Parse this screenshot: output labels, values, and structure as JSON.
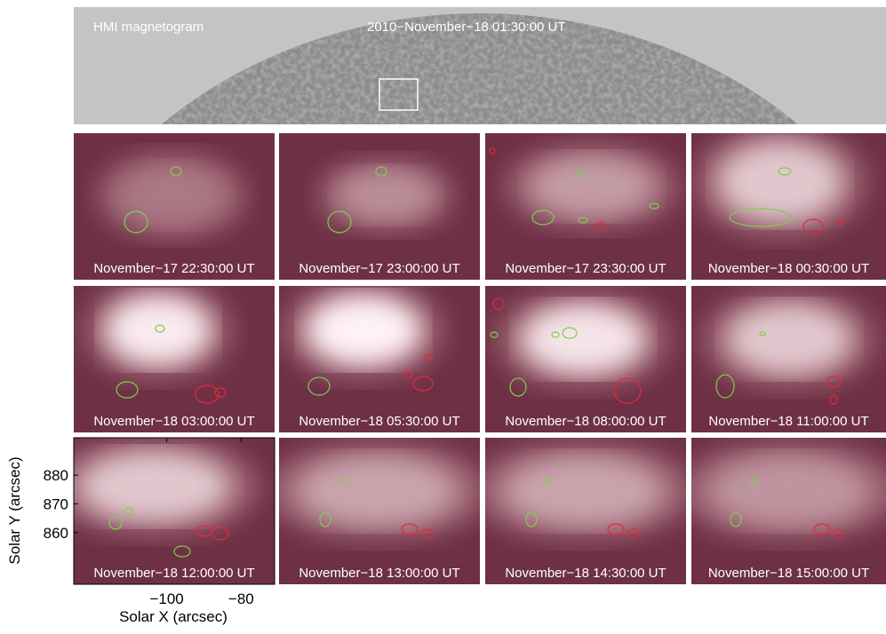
{
  "top_panel": {
    "title": "HMI magnetogram",
    "timestamp": "2010−November−18 01:30:00 UT"
  },
  "panels": [
    {
      "label": "November−17 22:30:00 UT"
    },
    {
      "label": "November−17 23:00:00 UT"
    },
    {
      "label": "November−17 23:30:00 UT"
    },
    {
      "label": "November−18 00:30:00 UT"
    },
    {
      "label": "November−18 03:00:00 UT"
    },
    {
      "label": "November−18 05:30:00 UT"
    },
    {
      "label": "November−18 08:00:00 UT"
    },
    {
      "label": "November−18 11:00:00 UT"
    },
    {
      "label": "November−18 12:00:00 UT"
    },
    {
      "label": "November−18 13:00:00 UT"
    },
    {
      "label": "November−18 14:30:00 UT"
    },
    {
      "label": "November−18 15:00:00 UT"
    }
  ],
  "axes": {
    "ylabel": "Solar Y (arcsec)",
    "xlabel": "Solar X (arcsec)",
    "xlim": [
      -125,
      -71
    ],
    "ylim": [
      842,
      893
    ],
    "yticks": [
      860,
      870,
      880
    ],
    "xticks": [
      {
        "value": -100,
        "label": "−100"
      },
      {
        "value": -80,
        "label": "−80"
      }
    ]
  }
}
